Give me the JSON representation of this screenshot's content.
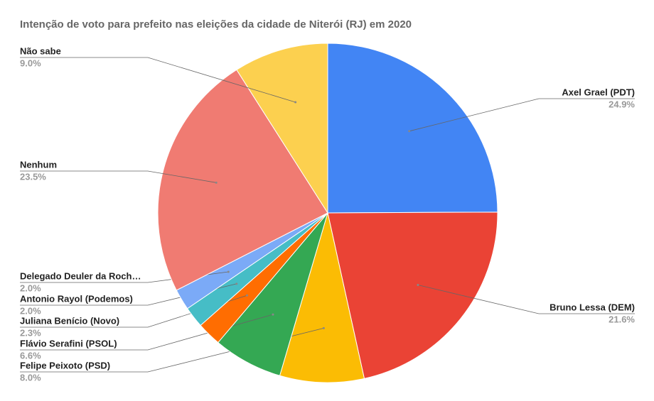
{
  "chart_data": {
    "type": "pie",
    "title": "Intenção de voto para prefeito nas eleições da cidade de Niterói (RJ) em 2020",
    "categories": [
      "Axel Grael (PDT)",
      "Bruno Lessa (DEM)",
      "Felipe Peixoto (PSD)",
      "Flávio Serafini (PSOL)",
      "Juliana Benício (Novo)",
      "Antonio Rayol (Podemos)",
      "Delegado Deuler da Roch…",
      "Nenhum",
      "Não sabe"
    ],
    "values": [
      24.9,
      21.6,
      8.0,
      6.6,
      2.3,
      2.0,
      2.0,
      23.5,
      9.0
    ],
    "value_labels": [
      "24.9%",
      "21.6%",
      "8.0%",
      "6.6%",
      "2.3%",
      "2.0%",
      "2.0%",
      "23.5%",
      "9.0%"
    ],
    "colors": [
      "#4285f4",
      "#ea4335",
      "#fbbc04",
      "#34a853",
      "#ff6d01",
      "#46bdc6",
      "#7baaf7",
      "#f07b72",
      "#fcd04f"
    ]
  }
}
